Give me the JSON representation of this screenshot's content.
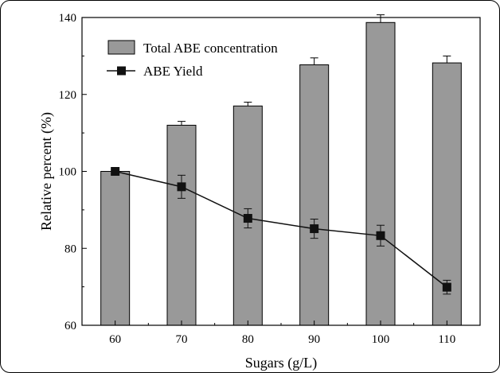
{
  "chart_data": {
    "type": "bar",
    "title": "",
    "xlabel": "Sugars (g/L)",
    "ylabel": "Relative percent (%)",
    "categories": [
      "60",
      "70",
      "80",
      "90",
      "100",
      "110"
    ],
    "ylim": [
      60,
      140
    ],
    "yticks": [
      60,
      80,
      100,
      120,
      140
    ],
    "grid": false,
    "legend_position": "top-left",
    "series": [
      {
        "name": "Total ABE concentration",
        "kind": "bar",
        "color": "#999999",
        "values": [
          100,
          112,
          117,
          127.7,
          138.7,
          128.2
        ],
        "error": [
          0,
          1,
          1,
          1.8,
          2,
          1.8
        ]
      },
      {
        "name": "ABE Yield",
        "kind": "line",
        "marker": "square",
        "color": "#111111",
        "values": [
          100,
          96,
          87.8,
          85.1,
          83.3,
          69.9
        ],
        "error": [
          0,
          3,
          2.5,
          2.5,
          2.7,
          1.8
        ]
      }
    ]
  }
}
